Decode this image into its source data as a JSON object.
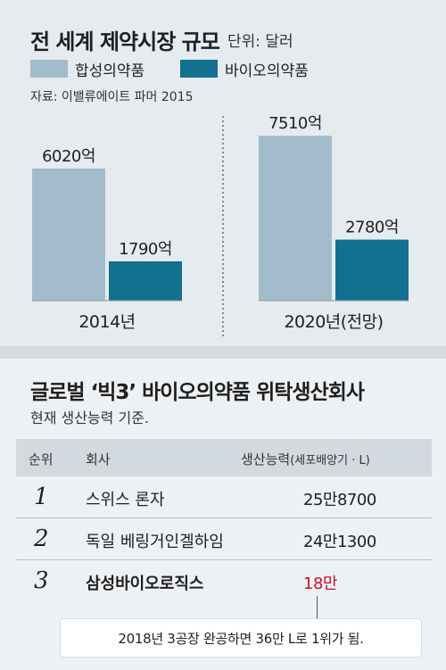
{
  "header": {
    "title": "전 세계 제약시장 규모",
    "unit": "단위: 달러",
    "source": "자료: 이밸류에이트 파머 2015"
  },
  "legend": [
    {
      "label": "합성의약품",
      "color": "#a3bccb"
    },
    {
      "label": "바이오의약품",
      "color": "#14708f"
    }
  ],
  "chart_data": {
    "type": "bar",
    "title": "전 세계 제약시장 규모",
    "unit": "달러",
    "categories": [
      "2014년",
      "2020년(전망)"
    ],
    "series": [
      {
        "name": "합성의약품",
        "values": [
          6020,
          7510
        ],
        "labels": [
          "6020억",
          "7510억"
        ],
        "color": "#a3bccb"
      },
      {
        "name": "바이오의약품",
        "values": [
          1790,
          2780
        ],
        "labels": [
          "1790억",
          "2780억"
        ],
        "color": "#14708f"
      }
    ],
    "ylim": [
      0,
      7600
    ],
    "grid": false,
    "legend_position": "top-left"
  },
  "table": {
    "title": "글로벌 ‘빅3’ 바이오의약품 위탁생산회사",
    "subtitle": "현재 생산능력 기준.",
    "headers": {
      "rank": "순위",
      "company": "회사",
      "capacity": "생산능력",
      "capacity_unit": "(세포배양기 · L)"
    },
    "rows": [
      {
        "rank": "1",
        "company": "스위스 론자",
        "capacity": "25만8700"
      },
      {
        "rank": "2",
        "company": "독일 베링거인겔하임",
        "capacity": "24만1300"
      },
      {
        "rank": "3",
        "company": "삼성바이오로직스",
        "capacity": "18만"
      }
    ],
    "highlight_color": "#c8102e",
    "note": "2018년 3공장 완공하면 36만 L로 1위가 됨."
  }
}
